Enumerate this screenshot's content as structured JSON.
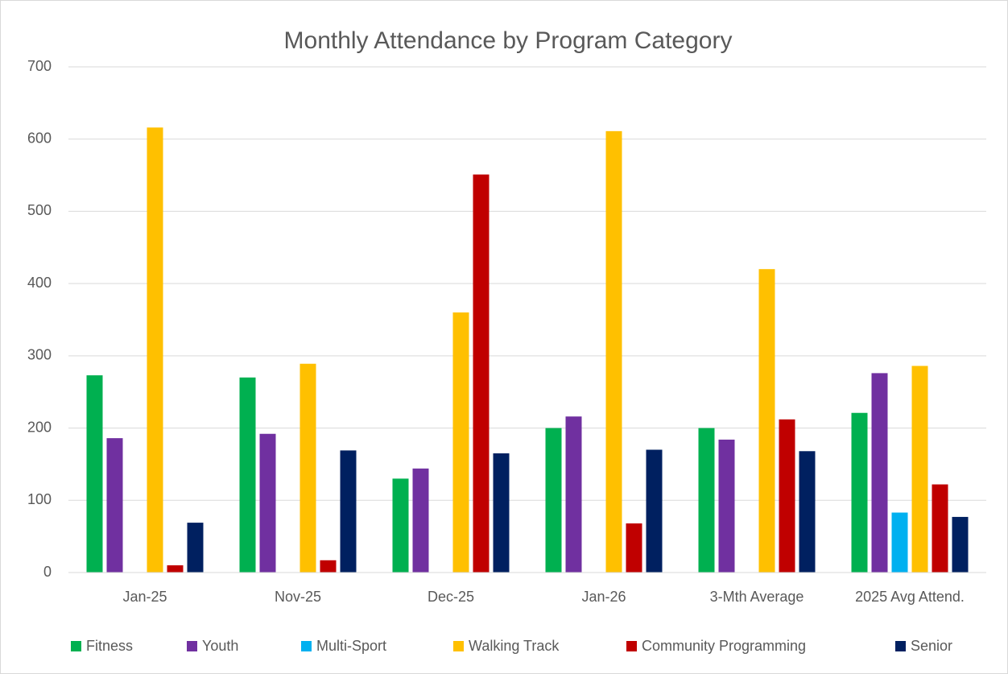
{
  "chart_data": {
    "type": "bar",
    "title": "Monthly Attendance by Program Category",
    "categories": [
      "Jan-25",
      "Nov-25",
      "Dec-25",
      "Jan-26",
      "3-Mth Average",
      "2025 Avg Attend."
    ],
    "series": [
      {
        "name": "Fitness",
        "color": "#00b050",
        "values": [
          273,
          270,
          130,
          200,
          200,
          221
        ]
      },
      {
        "name": "Youth",
        "color": "#7030a0",
        "values": [
          186,
          192,
          144,
          216,
          184,
          276
        ]
      },
      {
        "name": "Multi-Sport",
        "color": "#00b0f0",
        "values": [
          0,
          0,
          0,
          0,
          0,
          83
        ]
      },
      {
        "name": "Walking Track",
        "color": "#ffc000",
        "values": [
          616,
          289,
          360,
          611,
          420,
          286
        ]
      },
      {
        "name": "Community Programming",
        "color": "#c00000",
        "values": [
          10,
          17,
          551,
          68,
          212,
          122
        ]
      },
      {
        "name": "Senior",
        "color": "#002060",
        "values": [
          69,
          169,
          165,
          170,
          168,
          77
        ]
      }
    ],
    "ylim": [
      0,
      700
    ],
    "yticks": [
      0,
      100,
      200,
      300,
      400,
      500,
      600,
      700
    ],
    "grid": true,
    "legend": "bottom"
  }
}
